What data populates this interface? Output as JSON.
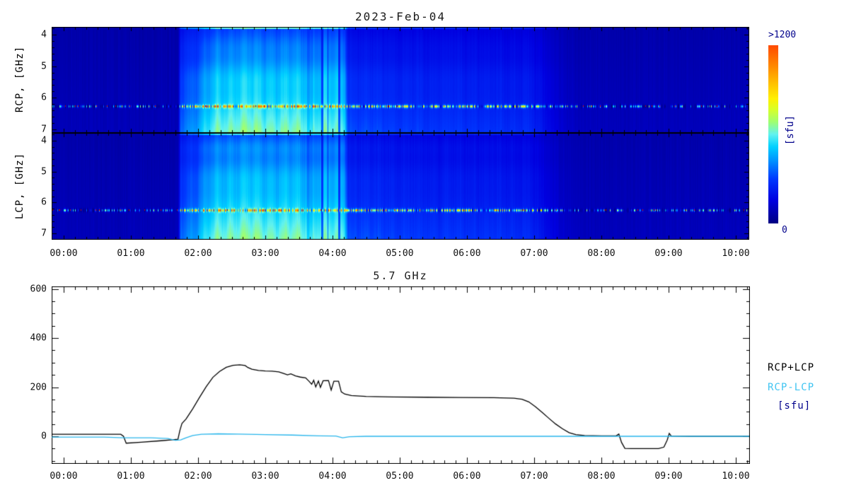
{
  "spectrogram": {
    "title": "2023-Feb-04",
    "rcp_label": "RCP, [GHz]",
    "lcp_label": "LCP, [GHz]",
    "freq_ticks": [
      4,
      5,
      6,
      7
    ],
    "time_labels": [
      "00:00",
      "01:00",
      "02:00",
      "03:00",
      "04:00",
      "05:00",
      "06:00",
      "07:00",
      "08:00",
      "09:00",
      "10:00"
    ],
    "colorbar": {
      "top_label": ">1200",
      "bottom_label": "0",
      "unit_label": "[sfu]",
      "label_color": "#00008B",
      "stops": [
        [
          0.0,
          "#000082"
        ],
        [
          0.13,
          "#0000E0"
        ],
        [
          0.25,
          "#0038FF"
        ],
        [
          0.35,
          "#0090FF"
        ],
        [
          0.43,
          "#00D0FF"
        ],
        [
          0.5,
          "#60F2F0"
        ],
        [
          0.57,
          "#9FFF70"
        ],
        [
          0.64,
          "#D8FF28"
        ],
        [
          0.7,
          "#FFF000"
        ],
        [
          0.78,
          "#FFC400"
        ],
        [
          0.87,
          "#FF9000"
        ],
        [
          1.0,
          "#FF4A00"
        ]
      ]
    },
    "model": {
      "t_min": -0.179,
      "t_max": 10.2,
      "base": 0.055,
      "base_fgrad": 0.02,
      "burst_gain": 0.52,
      "fshape_low": 0.4,
      "fshape_high": 0.52,
      "top_edge_boost": 0.26,
      "texture_amp": 0.1,
      "envelope": [
        [
          1.7,
          0
        ],
        [
          1.74,
          0.5
        ],
        [
          1.8,
          0.55
        ],
        [
          1.95,
          0.62
        ],
        [
          2.1,
          0.78
        ],
        [
          2.3,
          0.95
        ],
        [
          2.6,
          1.0
        ],
        [
          3.0,
          0.97
        ],
        [
          3.5,
          0.95
        ],
        [
          3.9,
          0.93
        ],
        [
          4.18,
          0.9
        ],
        [
          4.23,
          0.42
        ],
        [
          4.6,
          0.4
        ],
        [
          5.2,
          0.36
        ],
        [
          6.0,
          0.34
        ],
        [
          6.9,
          0.31
        ],
        [
          7.1,
          0.22
        ],
        [
          7.3,
          0.12
        ],
        [
          7.5,
          0.05
        ],
        [
          7.7,
          0.02
        ],
        [
          8.0,
          0.01
        ],
        [
          10.2,
          0.01
        ]
      ],
      "cal_gaps": [
        [
          3.62,
          3.7,
          0.85
        ],
        [
          3.83,
          3.86,
          0.5
        ],
        [
          3.92,
          3.94,
          0.55
        ],
        [
          4.08,
          4.11,
          0.5
        ]
      ],
      "panels": [
        {
          "name": "RCP",
          "seed": 77,
          "rfi_row": 112,
          "top_boost": 1.0,
          "bands": [
            [
              0.18,
              0.08,
              0.07
            ],
            [
              0.47,
              0.1,
              0.1
            ]
          ]
        },
        {
          "name": "LCP",
          "seed": 31,
          "rfi_row": 109,
          "top_boost": 0.8,
          "bands": [
            [
              0.13,
              0.07,
              0.12
            ],
            [
              0.4,
              0.1,
              0.09
            ]
          ]
        }
      ],
      "rfi": {
        "spread": 6,
        "quiet_presence": 0.55,
        "burst_presence": 0.92,
        "red_chance_quiet": 0.08,
        "red_chance_burst": 0.02
      }
    }
  },
  "flux_chart": {
    "title": "5.7 GHz",
    "y_ticks": [
      0,
      200,
      400,
      600
    ],
    "time_labels": [
      "00:00",
      "01:00",
      "02:00",
      "03:00",
      "04:00",
      "05:00",
      "06:00",
      "07:00",
      "08:00",
      "09:00",
      "10:00"
    ],
    "legend": [
      {
        "label": "RCP+LCP",
        "color": "#000000"
      },
      {
        "label": "RCP-LCP",
        "color": "#3FC4F2"
      },
      {
        "label": "[sfu]",
        "color": "#00008B"
      }
    ]
  },
  "chart_data": [
    {
      "type": "heatmap",
      "title": "2023-Feb-04",
      "panels": [
        "RCP, [GHz]",
        "LCP, [GHz]"
      ],
      "y_axis": {
        "unit": "GHz",
        "ticks": [
          4,
          5,
          6,
          7
        ],
        "range": [
          3.75,
          7.1
        ],
        "direction": "increasing downward"
      },
      "x_axis": {
        "unit": "UT time",
        "ticks": [
          "00:00",
          "01:00",
          "02:00",
          "03:00",
          "04:00",
          "05:00",
          "06:00",
          "07:00",
          "08:00",
          "09:00",
          "10:00"
        ],
        "range_hours": [
          -0.18,
          10.2
        ]
      },
      "colorbar": {
        "unit": "sfu",
        "min_label": "0",
        "max_label": ">1200"
      },
      "features": [
        "quiet dark-navy background before 01:45 and after 07:50",
        "bright broadband burst 01:45-04:15, brightest 02:20-03:50 toward higher frequencies",
        "moderate blue post-burst plateau 04:15-07:00 decaying to background by ~07:50",
        "narrowband RFI speckle lane near 6.3 GHz across all times with occasional red (>1200 sfu) pixels",
        "dark vertical calibration gaps near 03:45, 03:55 and 04:05"
      ]
    },
    {
      "type": "line",
      "title": "5.7 GHz",
      "ylabel": "sfu",
      "ylim": [
        -110,
        610
      ],
      "x_range_hours": [
        -0.179,
        10.2
      ],
      "series": [
        {
          "name": "RCP+LCP",
          "color": "#000000",
          "points": [
            [
              -0.18,
              8
            ],
            [
              0.4,
              8
            ],
            [
              0.85,
              8
            ],
            [
              0.89,
              0
            ],
            [
              0.93,
              -28
            ],
            [
              1.15,
              -24
            ],
            [
              1.45,
              -18
            ],
            [
              1.62,
              -14
            ],
            [
              1.7,
              -12
            ],
            [
              1.73,
              25
            ],
            [
              1.76,
              52
            ],
            [
              1.82,
              70
            ],
            [
              1.92,
              112
            ],
            [
              2.02,
              158
            ],
            [
              2.12,
              202
            ],
            [
              2.22,
              240
            ],
            [
              2.32,
              264
            ],
            [
              2.42,
              281
            ],
            [
              2.52,
              289
            ],
            [
              2.62,
              291
            ],
            [
              2.7,
              288
            ],
            [
              2.74,
              280
            ],
            [
              2.8,
              273
            ],
            [
              2.9,
              268
            ],
            [
              3.0,
              266
            ],
            [
              3.1,
              265
            ],
            [
              3.2,
              262
            ],
            [
              3.28,
              255
            ],
            [
              3.33,
              250
            ],
            [
              3.38,
              254
            ],
            [
              3.45,
              246
            ],
            [
              3.52,
              241
            ],
            [
              3.6,
              238
            ],
            [
              3.65,
              224
            ],
            [
              3.69,
              212
            ],
            [
              3.72,
              228
            ],
            [
              3.75,
              201
            ],
            [
              3.79,
              225
            ],
            [
              3.82,
              199
            ],
            [
              3.86,
              226
            ],
            [
              3.94,
              227
            ],
            [
              3.98,
              188
            ],
            [
              4.02,
              224
            ],
            [
              4.09,
              224
            ],
            [
              4.13,
              181
            ],
            [
              4.18,
              172
            ],
            [
              4.28,
              166
            ],
            [
              4.5,
              162
            ],
            [
              4.9,
              160
            ],
            [
              5.4,
              159
            ],
            [
              5.9,
              158
            ],
            [
              6.4,
              157
            ],
            [
              6.7,
              155
            ],
            [
              6.82,
              151
            ],
            [
              6.92,
              140
            ],
            [
              7.02,
              120
            ],
            [
              7.12,
              97
            ],
            [
              7.22,
              73
            ],
            [
              7.32,
              50
            ],
            [
              7.42,
              31
            ],
            [
              7.52,
              15
            ],
            [
              7.62,
              7
            ],
            [
              7.75,
              3
            ],
            [
              8.0,
              2
            ],
            [
              8.22,
              2
            ],
            [
              8.26,
              9
            ],
            [
              8.3,
              -25
            ],
            [
              8.35,
              -49
            ],
            [
              8.45,
              -50
            ],
            [
              8.85,
              -50
            ],
            [
              8.93,
              -44
            ],
            [
              8.98,
              -15
            ],
            [
              9.01,
              12
            ],
            [
              9.04,
              1
            ],
            [
              9.3,
              0
            ],
            [
              9.8,
              0
            ],
            [
              10.2,
              0
            ]
          ]
        },
        {
          "name": "RCP-LCP",
          "color": "#29B6EC",
          "points": [
            [
              -0.18,
              -3
            ],
            [
              0.6,
              -3
            ],
            [
              0.9,
              -6
            ],
            [
              1.3,
              -6
            ],
            [
              1.55,
              -9
            ],
            [
              1.66,
              -16
            ],
            [
              1.74,
              -15
            ],
            [
              1.82,
              -6
            ],
            [
              1.92,
              3
            ],
            [
              2.05,
              8
            ],
            [
              2.3,
              10
            ],
            [
              2.6,
              9
            ],
            [
              3.0,
              7
            ],
            [
              3.4,
              5
            ],
            [
              3.8,
              2
            ],
            [
              4.05,
              1
            ],
            [
              4.15,
              -6
            ],
            [
              4.25,
              -2
            ],
            [
              4.5,
              0
            ],
            [
              5.5,
              0
            ],
            [
              7.0,
              0
            ],
            [
              8.5,
              0
            ],
            [
              10.2,
              0
            ]
          ]
        }
      ]
    }
  ]
}
